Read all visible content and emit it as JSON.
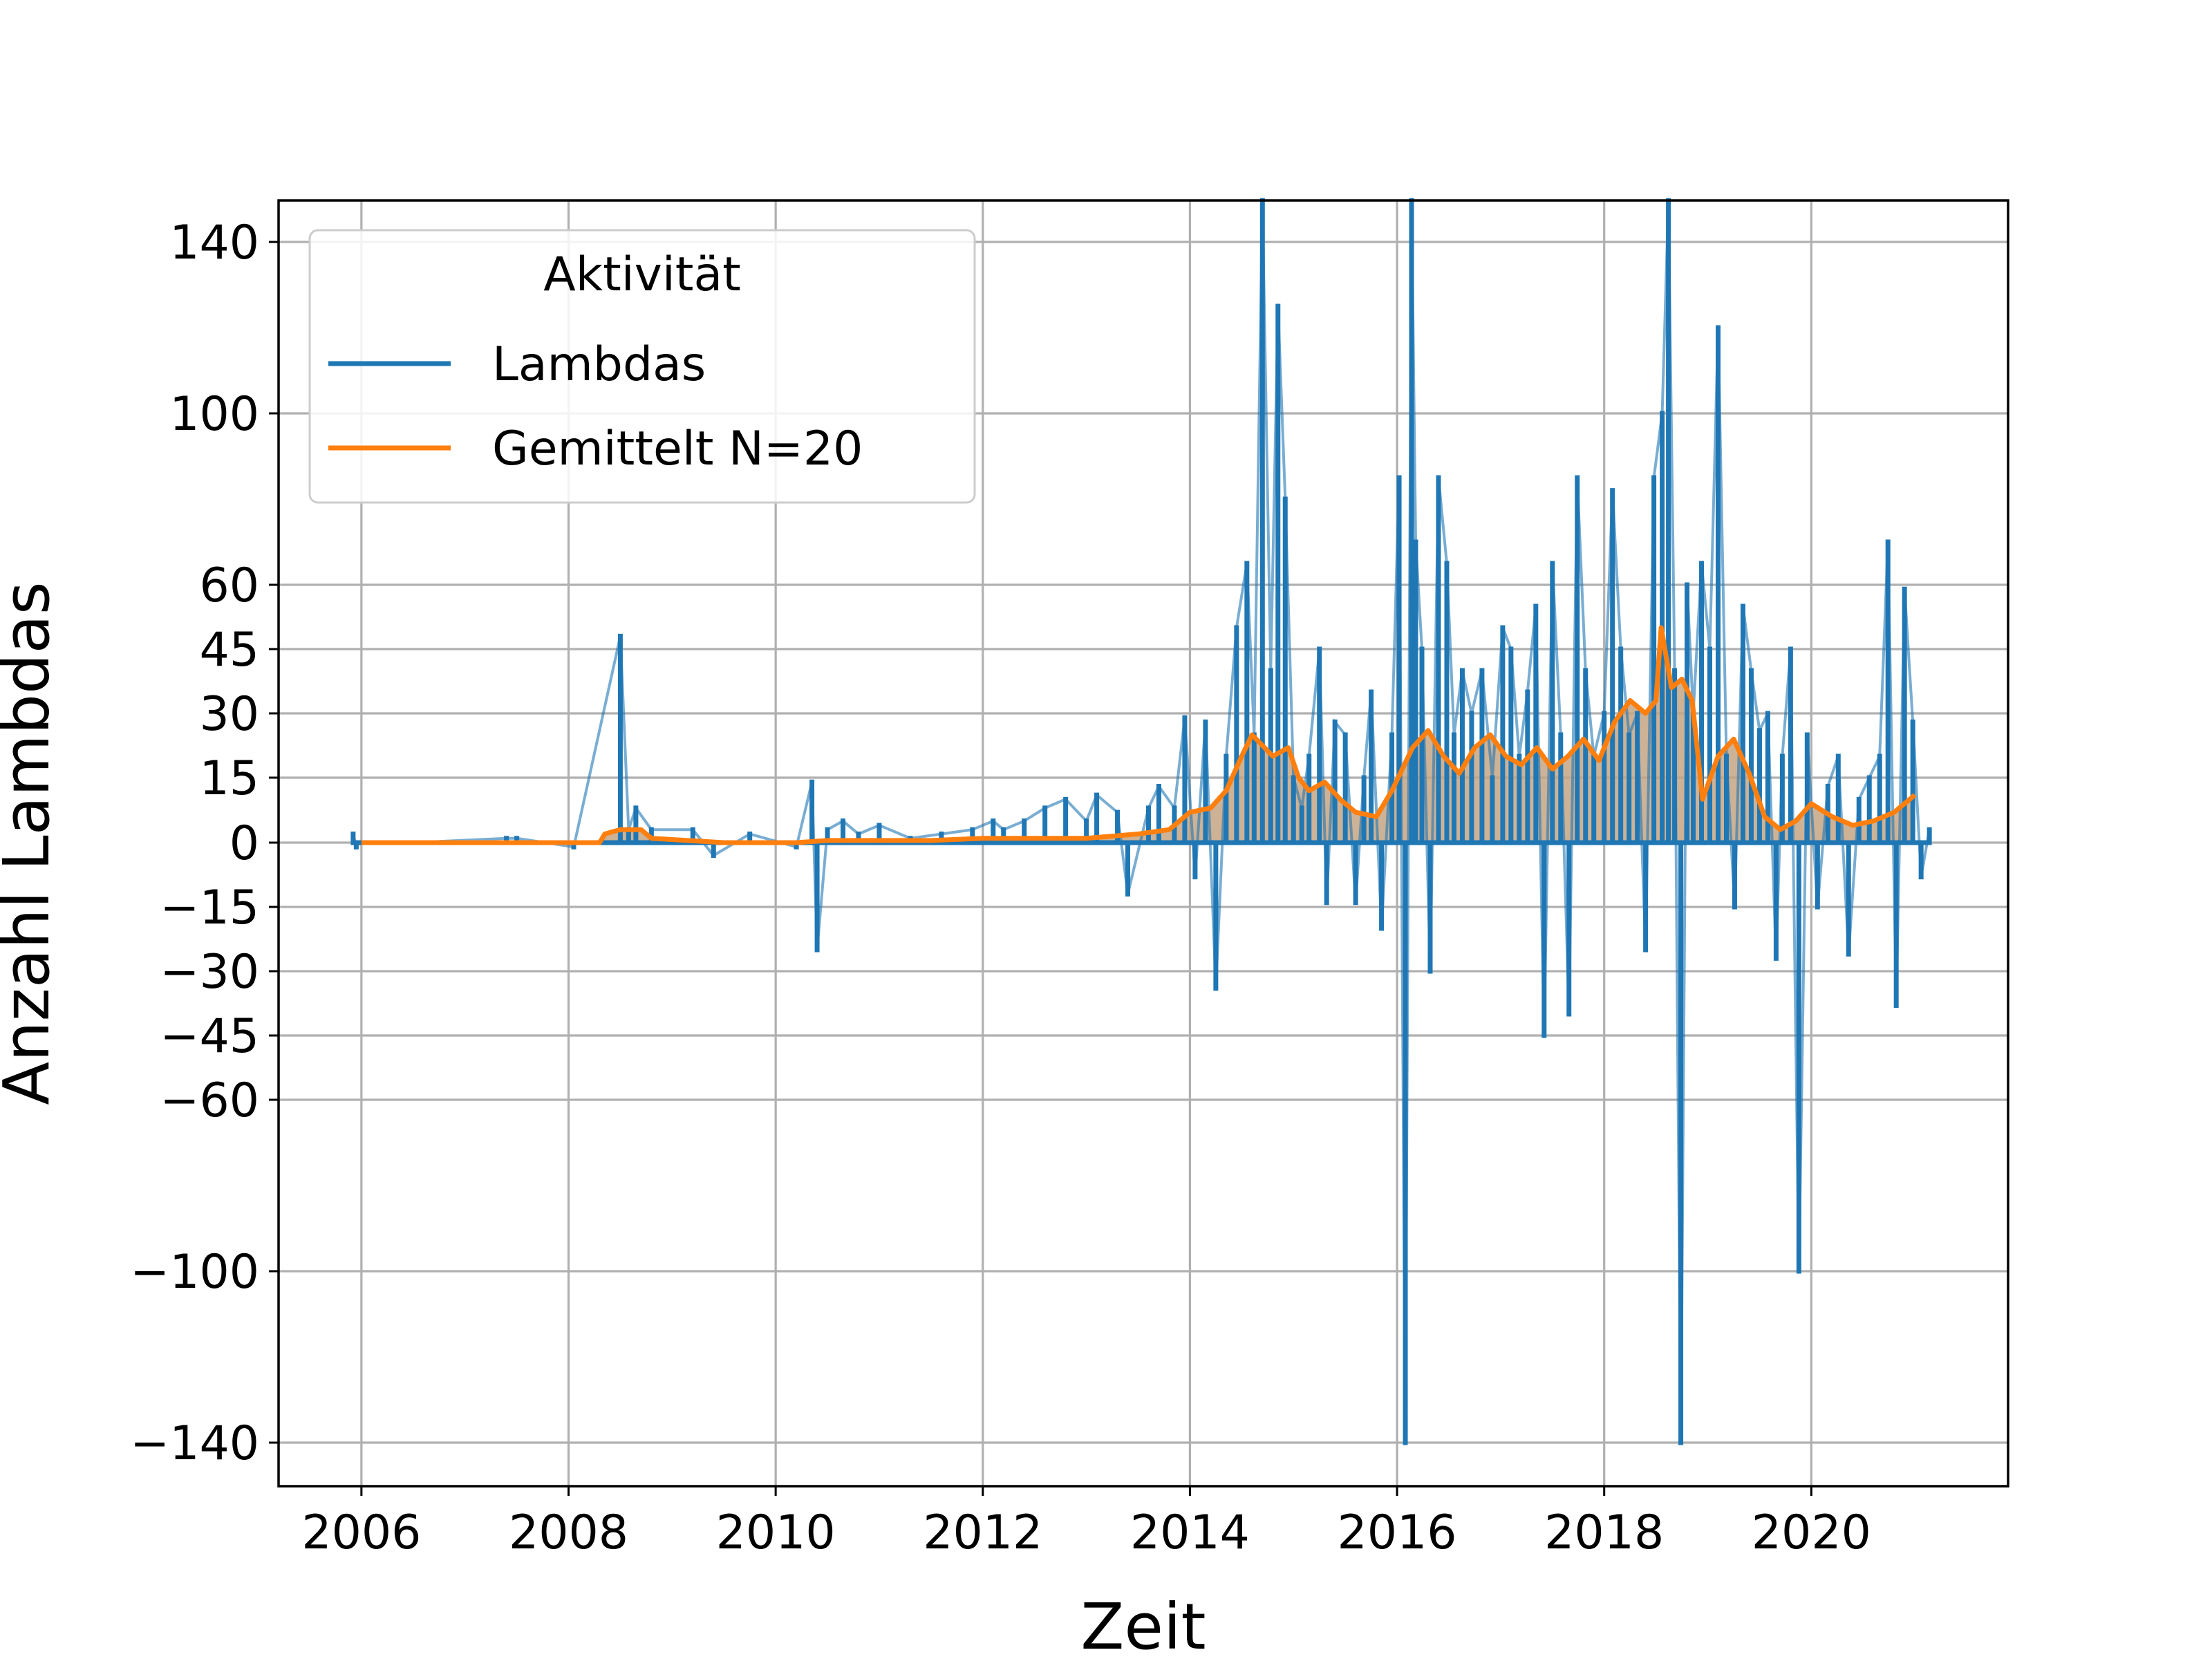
{
  "chart_data": {
    "type": "line",
    "xlabel": "Zeit",
    "ylabel": "Anzahl Lambdas",
    "xlim": [
      2005.2,
      2021.9
    ],
    "ylim": [
      -150,
      150
    ],
    "y_scale": "symmetric (linear between -15 and 15, compressed beyond)",
    "x_ticks": [
      "2006",
      "2008",
      "2010",
      "2012",
      "2014",
      "2016",
      "2018",
      "2020"
    ],
    "y_ticks": [
      "140",
      "100",
      "60",
      "45",
      "30",
      "15",
      "0",
      "−15",
      "−30",
      "−45",
      "−60",
      "−100",
      "−140"
    ],
    "y_tick_values": [
      140,
      100,
      60,
      45,
      30,
      15,
      0,
      -15,
      -30,
      -45,
      -60,
      -100,
      -140
    ],
    "grid": true,
    "legend": {
      "title": "Aktivität",
      "placement": "top-left"
    },
    "colors": {
      "lambdas": "#1f77b4",
      "mean": "#ff7f0e",
      "fill": "#c4a484"
    },
    "series": [
      {
        "name": "Lambdas",
        "x": [
          2005.92,
          2005.95,
          2005.98,
          2006.5,
          2007.4,
          2007.5,
          2008.05,
          2008.5,
          2008.58,
          2008.65,
          2008.8,
          2009.2,
          2009.4,
          2009.75,
          2010.2,
          2010.35,
          2010.4,
          2010.5,
          2010.65,
          2010.8,
          2011.0,
          2011.3,
          2011.6,
          2011.9,
          2012.1,
          2012.2,
          2012.4,
          2012.6,
          2012.8,
          2013.0,
          2013.1,
          2013.3,
          2013.4,
          2013.6,
          2013.7,
          2013.85,
          2013.95,
          2014.05,
          2014.15,
          2014.25,
          2014.35,
          2014.45,
          2014.55,
          2014.62,
          2014.7,
          2014.78,
          2014.85,
          2014.92,
          2015.0,
          2015.08,
          2015.15,
          2015.25,
          2015.32,
          2015.4,
          2015.5,
          2015.6,
          2015.68,
          2015.75,
          2015.85,
          2015.95,
          2016.02,
          2016.08,
          2016.14,
          2016.18,
          2016.24,
          2016.32,
          2016.4,
          2016.48,
          2016.55,
          2016.63,
          2016.72,
          2016.82,
          2016.92,
          2017.02,
          2017.1,
          2017.18,
          2017.26,
          2017.34,
          2017.42,
          2017.5,
          2017.58,
          2017.66,
          2017.74,
          2017.82,
          2017.9,
          2018.0,
          2018.08,
          2018.16,
          2018.24,
          2018.32,
          2018.4,
          2018.48,
          2018.56,
          2018.62,
          2018.68,
          2018.74,
          2018.8,
          2018.86,
          2018.94,
          2019.02,
          2019.1,
          2019.18,
          2019.26,
          2019.34,
          2019.42,
          2019.5,
          2019.58,
          2019.66,
          2019.72,
          2019.8,
          2019.88,
          2019.96,
          2020.06,
          2020.16,
          2020.26,
          2020.36,
          2020.46,
          2020.56,
          2020.66,
          2020.74,
          2020.82,
          2020.9,
          2020.98,
          2021.06,
          2021.14
        ],
        "values": [
          2,
          -1,
          0,
          0,
          1,
          1,
          -1,
          48,
          3,
          8,
          3,
          3,
          -3,
          2,
          -1,
          14,
          -25,
          3,
          5,
          2,
          4,
          1,
          2,
          3,
          5,
          3,
          5,
          8,
          10,
          5,
          11,
          7,
          -12,
          8,
          13,
          8,
          29,
          -8,
          28,
          -34,
          20,
          50,
          65,
          25,
          150,
          40,
          125,
          80,
          15,
          8,
          20,
          45,
          -14,
          28,
          25,
          -14,
          15,
          35,
          -20,
          25,
          85,
          -140,
          150,
          70,
          45,
          -30,
          85,
          65,
          25,
          40,
          30,
          40,
          15,
          50,
          45,
          20,
          35,
          55,
          -45,
          65,
          25,
          -40,
          85,
          40,
          20,
          30,
          82,
          45,
          25,
          30,
          -25,
          85,
          100,
          150,
          40,
          -140,
          60,
          30,
          65,
          45,
          120,
          20,
          -15,
          55,
          40,
          26,
          30,
          -27,
          20,
          45,
          -100,
          25,
          -15,
          13,
          20,
          -26,
          10,
          15,
          20,
          70,
          -38,
          59,
          28,
          -8,
          3
        ]
      },
      {
        "name": "Gemittelt N=20",
        "x": [
          2006.0,
          2007.0,
          2008.0,
          2008.3,
          2008.35,
          2008.5,
          2008.7,
          2008.8,
          2009.5,
          2010.2,
          2010.5,
          2011.0,
          2011.5,
          2012.0,
          2012.5,
          2013.0,
          2013.5,
          2013.8,
          2014.0,
          2014.2,
          2014.35,
          2014.5,
          2014.6,
          2014.8,
          2014.95,
          2015.05,
          2015.15,
          2015.3,
          2015.45,
          2015.6,
          2015.8,
          2015.95,
          2016.05,
          2016.15,
          2016.3,
          2016.45,
          2016.6,
          2016.75,
          2016.9,
          2017.05,
          2017.2,
          2017.35,
          2017.5,
          2017.65,
          2017.8,
          2017.95,
          2018.1,
          2018.25,
          2018.4,
          2018.5,
          2018.55,
          2018.65,
          2018.75,
          2018.85,
          2018.95,
          2019.1,
          2019.25,
          2019.4,
          2019.55,
          2019.7,
          2019.85,
          2020.0,
          2020.2,
          2020.4,
          2020.6,
          2020.8,
          2020.95,
          2021.0
        ],
        "values": [
          0,
          0,
          0,
          0,
          2,
          3,
          3,
          1,
          0,
          0,
          0.5,
          0.5,
          0.5,
          1,
          1,
          1,
          2,
          3,
          7,
          8,
          12,
          20,
          25,
          20,
          22,
          15,
          12,
          14,
          10,
          7,
          6,
          12,
          17,
          22,
          26,
          20,
          16,
          22,
          25,
          20,
          18,
          22,
          17,
          20,
          24,
          19,
          28,
          33,
          30,
          33,
          50,
          36,
          38,
          33,
          10,
          20,
          24,
          16,
          6,
          3,
          5,
          9,
          6,
          4,
          5,
          7,
          10,
          11
        ]
      }
    ]
  }
}
